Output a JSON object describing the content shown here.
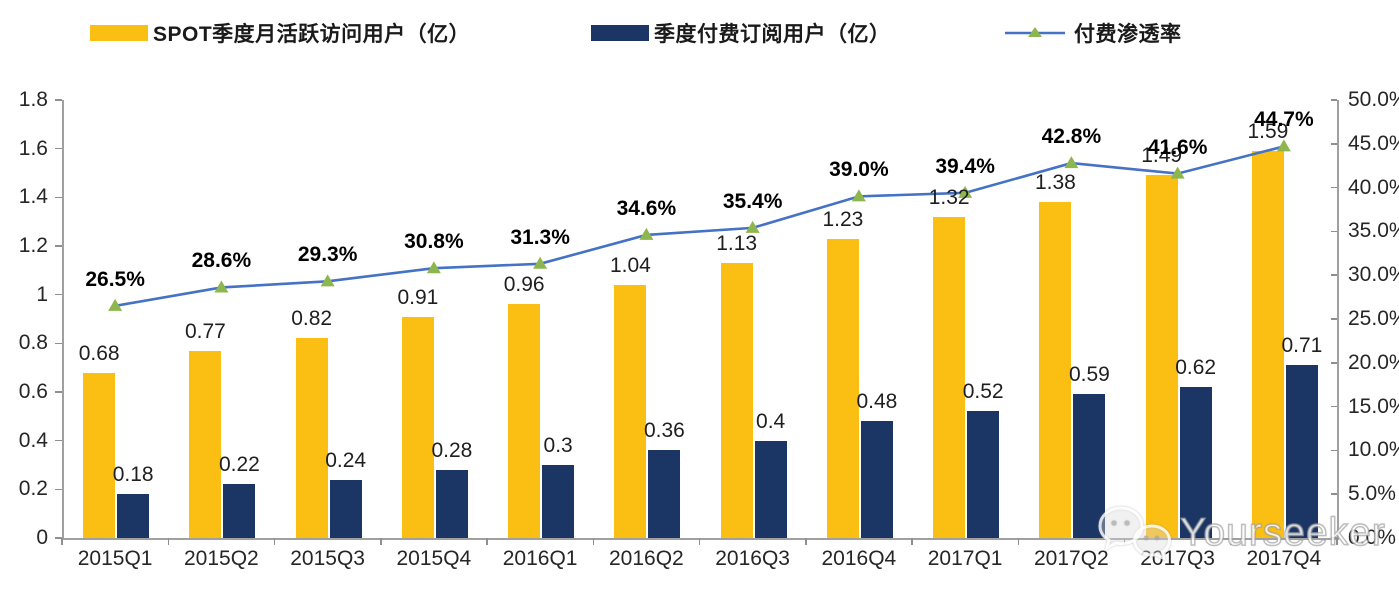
{
  "legend": {
    "items": [
      {
        "label": "SPOT季度月活跃访问用户（亿）",
        "swatch_color": "#FBBE12",
        "type": "bar"
      },
      {
        "label": "季度付费订阅用户（亿）",
        "swatch_color": "#1B3564",
        "type": "bar"
      },
      {
        "label": "付费渗透率",
        "line_color": "#4472C4",
        "marker_color": "#8DB74E",
        "type": "line"
      }
    ]
  },
  "watermark": {
    "text": "Yourseeker",
    "icon": "wechat-icon"
  },
  "chart_data": {
    "type": "bar+line",
    "legend_position": "top",
    "grid": false,
    "categories": [
      "2015Q1",
      "2015Q2",
      "2015Q3",
      "2015Q4",
      "2016Q1",
      "2016Q2",
      "2016Q3",
      "2016Q4",
      "2017Q1",
      "2017Q2",
      "2017Q3",
      "2017Q4"
    ],
    "series": [
      {
        "name": "SPOT季度月活跃访问用户（亿）",
        "type": "bar",
        "axis": "left",
        "color": "#FBBE12",
        "values": [
          0.68,
          0.77,
          0.82,
          0.91,
          0.96,
          1.04,
          1.13,
          1.23,
          1.32,
          1.38,
          1.49,
          1.59
        ],
        "labels": [
          "0.68",
          "0.77",
          "0.82",
          "0.91",
          "0.96",
          "1.04",
          "1.13",
          "1.23",
          "1.32",
          "1.38",
          "1.49",
          "1.59"
        ]
      },
      {
        "name": "季度付费订阅用户（亿）",
        "type": "bar",
        "axis": "left",
        "color": "#1B3564",
        "values": [
          0.18,
          0.22,
          0.24,
          0.28,
          0.3,
          0.36,
          0.4,
          0.48,
          0.52,
          0.59,
          0.62,
          0.71
        ],
        "labels": [
          "0.18",
          "0.22",
          "0.24",
          "0.28",
          "0.3",
          "0.36",
          "0.4",
          "0.48",
          "0.52",
          "0.59",
          "0.62",
          "0.71"
        ]
      },
      {
        "name": "付费渗透率",
        "type": "line",
        "axis": "right",
        "color": "#4472C4",
        "marker": "triangle-up",
        "marker_color": "#8DB74E",
        "values": [
          26.5,
          28.6,
          29.3,
          30.8,
          31.3,
          34.6,
          35.4,
          39.0,
          39.4,
          42.8,
          41.6,
          44.7
        ],
        "labels": [
          "26.5%",
          "28.6%",
          "29.3%",
          "30.8%",
          "31.3%",
          "34.6%",
          "35.4%",
          "39.0%",
          "39.4%",
          "42.8%",
          "41.6%",
          "44.7%"
        ]
      }
    ],
    "left_axis": {
      "min": 0,
      "max": 1.8,
      "tick_labels": [
        "0",
        "0.2",
        "0.4",
        "0.6",
        "0.8",
        "1",
        "1.2",
        "1.4",
        "1.6",
        "1.8"
      ]
    },
    "right_axis": {
      "min": 0,
      "max": 50,
      "tick_labels": [
        "0.0%",
        "5.0%",
        "10.0%",
        "15.0%",
        "20.0%",
        "25.0%",
        "30.0%",
        "35.0%",
        "40.0%",
        "45.0%",
        "50.0%"
      ]
    }
  }
}
